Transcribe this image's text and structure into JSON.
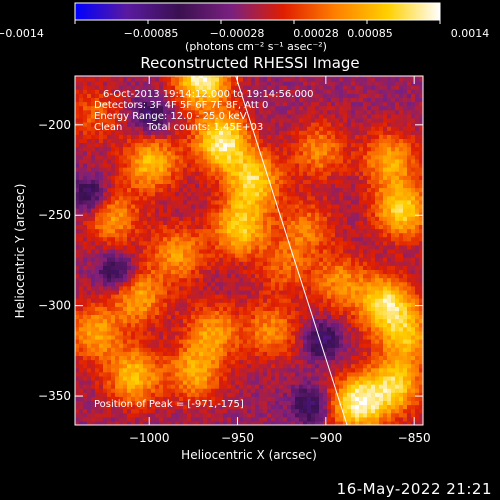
{
  "chart_data": {
    "type": "heatmap",
    "title": "Reconstructed RHESSI Image",
    "xlabel": "Heliocentric X (arcsec)",
    "ylabel": "Heliocentric Y (arcsec)",
    "xlim": [
      -1042,
      -845
    ],
    "ylim": [
      -366,
      -173
    ],
    "x_ticks": [
      -1000,
      -950,
      -900,
      -850
    ],
    "x_tick_labels": [
      "−1000",
      "−950",
      "−900",
      "−850"
    ],
    "y_ticks": [
      -350,
      -300,
      -250,
      -200
    ],
    "y_tick_labels": [
      "−350",
      "−300",
      "−250",
      "−200"
    ],
    "colorbar": {
      "range": [
        -0.0014,
        0.0014
      ],
      "tick_labels": [
        "−0.0014",
        "−0.00085",
        "−0.00028",
        "0.00028",
        "0.00085",
        "0.0014"
      ],
      "unit_label": "(photons cm⁻² s⁻¹ asec⁻²)",
      "colors": [
        "#0000ff",
        "#5a1aa0",
        "#3a1050",
        "#7a2080",
        "#e01e00",
        "#ff8000",
        "#ffd000",
        "#ffffff"
      ]
    },
    "limb_line": {
      "from": [
        -951,
        -173
      ],
      "to": [
        -888,
        -366
      ]
    },
    "hot_spots": [
      {
        "x": -971,
        "y": -175,
        "v": 1.0
      },
      {
        "x": -960,
        "y": -210,
        "v": 0.95
      },
      {
        "x": -942,
        "y": -232,
        "v": 0.8
      },
      {
        "x": -950,
        "y": -258,
        "v": 0.75
      },
      {
        "x": -1000,
        "y": -222,
        "v": 0.7
      },
      {
        "x": -1022,
        "y": -252,
        "v": 0.55
      },
      {
        "x": -985,
        "y": -272,
        "v": 0.55
      },
      {
        "x": -1007,
        "y": -296,
        "v": 0.6
      },
      {
        "x": -1032,
        "y": -316,
        "v": 0.6
      },
      {
        "x": -1010,
        "y": -340,
        "v": 0.7
      },
      {
        "x": -975,
        "y": -338,
        "v": 0.6
      },
      {
        "x": -965,
        "y": -315,
        "v": 0.55
      },
      {
        "x": -932,
        "y": -315,
        "v": 0.5
      },
      {
        "x": -883,
        "y": -355,
        "v": 0.95
      },
      {
        "x": -862,
        "y": -345,
        "v": 0.75
      },
      {
        "x": -855,
        "y": -318,
        "v": 0.6
      },
      {
        "x": -867,
        "y": -300,
        "v": 0.85
      },
      {
        "x": -858,
        "y": -248,
        "v": 0.8
      },
      {
        "x": -865,
        "y": -220,
        "v": 0.6
      },
      {
        "x": -905,
        "y": -215,
        "v": 0.5
      },
      {
        "x": -912,
        "y": -258,
        "v": 0.45
      },
      {
        "x": -893,
        "y": -288,
        "v": 0.5
      },
      {
        "x": -925,
        "y": -280,
        "v": 0.35
      },
      {
        "x": -1033,
        "y": -195,
        "v": 0.35
      }
    ],
    "cold_spots": [
      {
        "x": -1035,
        "y": -240
      },
      {
        "x": -1020,
        "y": -282
      },
      {
        "x": -1000,
        "y": -196
      },
      {
        "x": -910,
        "y": -356
      },
      {
        "x": -903,
        "y": -320
      }
    ]
  },
  "annotations": {
    "time_range": "6-Oct-2013 19:14:12.000 to 19:14:56.000",
    "detectors": "Detectors: 3F 4F 5F 6F 7F 8F, Att 0",
    "energy_range": "Energy Range: 12.0 - 25.0 keV",
    "method": "Clean",
    "total_counts": "Total counts: 1.45E+03",
    "peak_position": "Position of Peak = [-971,-175]"
  },
  "footer": {
    "timestamp": "16-May-2022 21:21"
  }
}
